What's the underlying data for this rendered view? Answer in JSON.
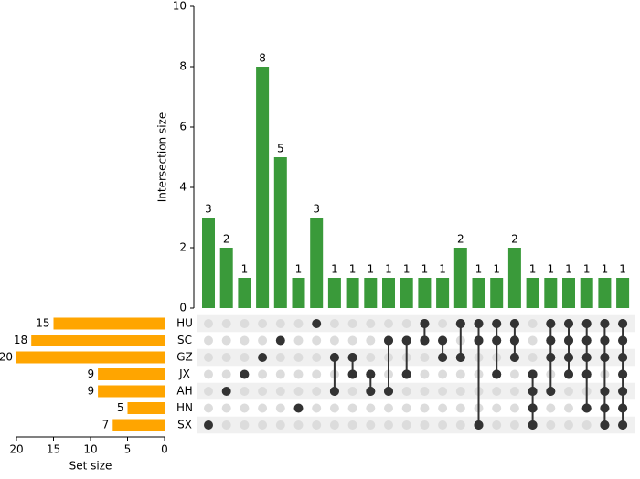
{
  "chart_data": {
    "type": "upset",
    "intersections": {
      "values": [
        3,
        2,
        1,
        8,
        5,
        1,
        3,
        1,
        1,
        1,
        1,
        1,
        1,
        1,
        2,
        1,
        1,
        2,
        1,
        1,
        1,
        1,
        1,
        1
      ],
      "members": [
        [
          6
        ],
        [
          4
        ],
        [
          3
        ],
        [
          2
        ],
        [
          1
        ],
        [
          5
        ],
        [
          0
        ],
        [
          2,
          4
        ],
        [
          2,
          3
        ],
        [
          3,
          4
        ],
        [
          1,
          4
        ],
        [
          1,
          3
        ],
        [
          0,
          1
        ],
        [
          1,
          2
        ],
        [
          0,
          2
        ],
        [
          0,
          1,
          6
        ],
        [
          0,
          1,
          3
        ],
        [
          0,
          1,
          2
        ],
        [
          3,
          4,
          5,
          6
        ],
        [
          0,
          1,
          2,
          4
        ],
        [
          0,
          1,
          2,
          3
        ],
        [
          0,
          1,
          2,
          3,
          5
        ],
        [
          0,
          1,
          2,
          4,
          5,
          6
        ],
        [
          0,
          1,
          2,
          3,
          4,
          5,
          6
        ]
      ],
      "color": "#3a9a3a",
      "ylabel": "Intersection size",
      "ylim": [
        0,
        10
      ],
      "yticks": [
        0,
        2,
        4,
        6,
        8,
        10
      ]
    },
    "sets": {
      "names": [
        "HU",
        "SC",
        "GZ",
        "JX",
        "AH",
        "HN",
        "SX"
      ],
      "values": [
        15,
        18,
        20,
        9,
        9,
        5,
        7
      ],
      "color": "#ffa500",
      "xlabel": "Set size",
      "xlim": [
        20,
        0
      ],
      "xticks": [
        20,
        15,
        10,
        5,
        0
      ]
    }
  }
}
